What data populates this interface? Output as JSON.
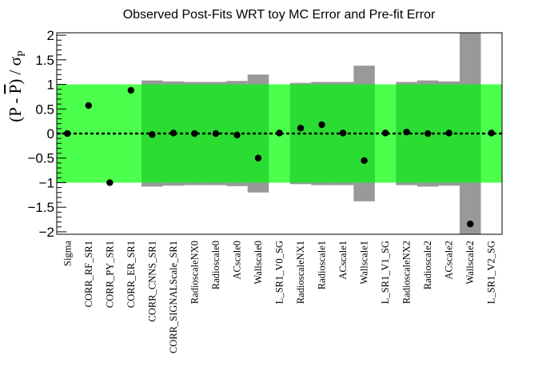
{
  "chart_data": {
    "type": "scatter",
    "title": "Observed Post-Fits WRT toy MC Error and Pre-fit Error",
    "ylabel": "(P - P̅) / σP",
    "ylabel_parts": {
      "open": "(P - ",
      "pbar": "P",
      "close": ") / σ",
      "sub": "P"
    },
    "ylim": [
      -2.05,
      2.05
    ],
    "yticks": [
      2,
      1.5,
      1,
      0.5,
      0,
      -0.5,
      -1,
      -1.5,
      -2
    ],
    "ytick_labels": [
      "2",
      "1.5",
      "1",
      "0.5",
      "0",
      "−0.5",
      "−1",
      "−1.5",
      "−2"
    ],
    "band_1sigma": [
      -1,
      1
    ],
    "categories": [
      "Sigma",
      "CORR_RF_SR1",
      "CORR_PY_SR1",
      "CORR_ER_SR1",
      "CORR_CNNS_SR1",
      "CORR_SIGNALScale_SR1",
      "RadioscaleNX0",
      "Radioscale0",
      "ACscale0",
      "Wallscale0",
      "L_SR1_V0_SG",
      "RadioscaleNX1",
      "Radioscale1",
      "ACscale1",
      "Wallscale1",
      "L_SR1_V1_SG",
      "RadioscaleNX2",
      "Radioscale2",
      "ACscale2",
      "Wallscale2",
      "L_SR1_V2_SG"
    ],
    "values": [
      0.0,
      0.57,
      -1.0,
      0.88,
      -0.02,
      0.01,
      0.0,
      0.0,
      -0.03,
      -0.5,
      0.01,
      0.11,
      0.18,
      0.01,
      -0.55,
      0.01,
      0.03,
      0.0,
      0.01,
      -1.84,
      0.01
    ],
    "toy_error": [
      null,
      null,
      null,
      null,
      1.08,
      1.06,
      1.05,
      1.05,
      1.07,
      1.2,
      null,
      1.03,
      1.05,
      1.05,
      1.38,
      null,
      1.05,
      1.08,
      1.06,
      2.1,
      null
    ],
    "prefit_band_groups": [
      {
        "from": "CORR_CNNS_SR1",
        "to": "Wallscale0"
      },
      {
        "from": "RadioscaleNX1",
        "to": "Wallscale1"
      },
      {
        "from": "RadioscaleNX2",
        "to": "Wallscale2"
      }
    ],
    "grid": false,
    "colors": {
      "band_light": "#4dff4d",
      "band_dark": "#2bdd33",
      "toy_error_bar": "#999999",
      "marker": "#000000",
      "zero_line": "#000000"
    }
  }
}
